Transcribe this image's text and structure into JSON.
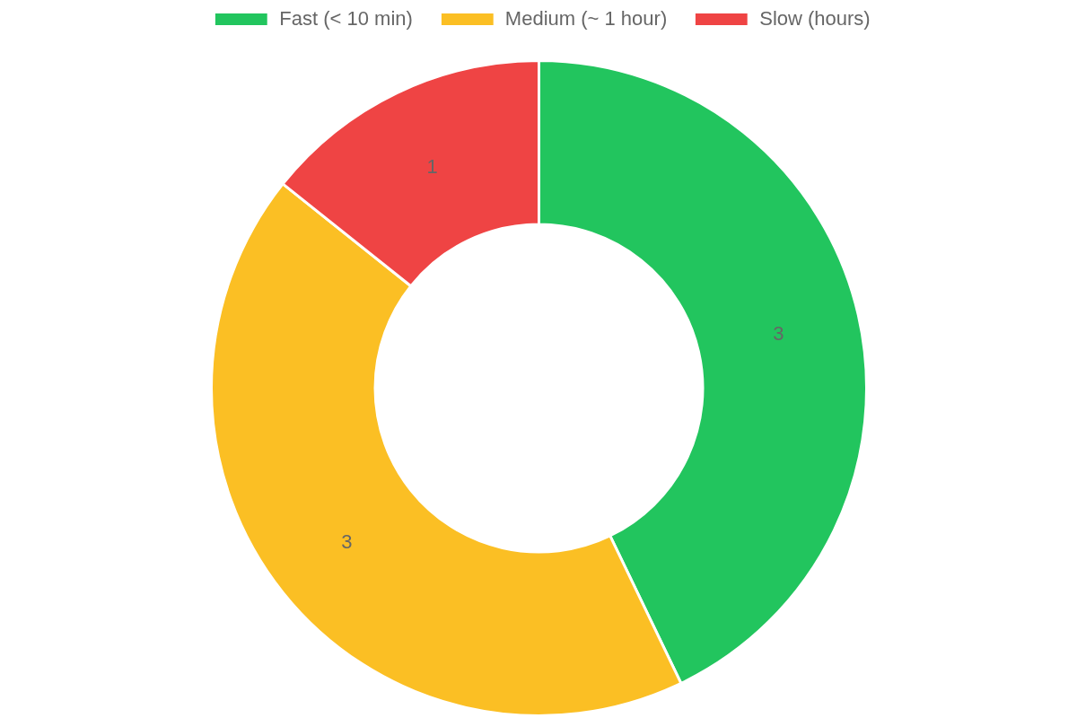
{
  "chart_data": {
    "type": "donut",
    "categories": [
      "Fast (< 10 min)",
      "Medium (~ 1 hour)",
      "Slow (hours)"
    ],
    "values": [
      3,
      3,
      1
    ],
    "colors": [
      "#22c55e",
      "#fbbf24",
      "#ef4444"
    ],
    "data_labels": true,
    "legend": "top"
  }
}
